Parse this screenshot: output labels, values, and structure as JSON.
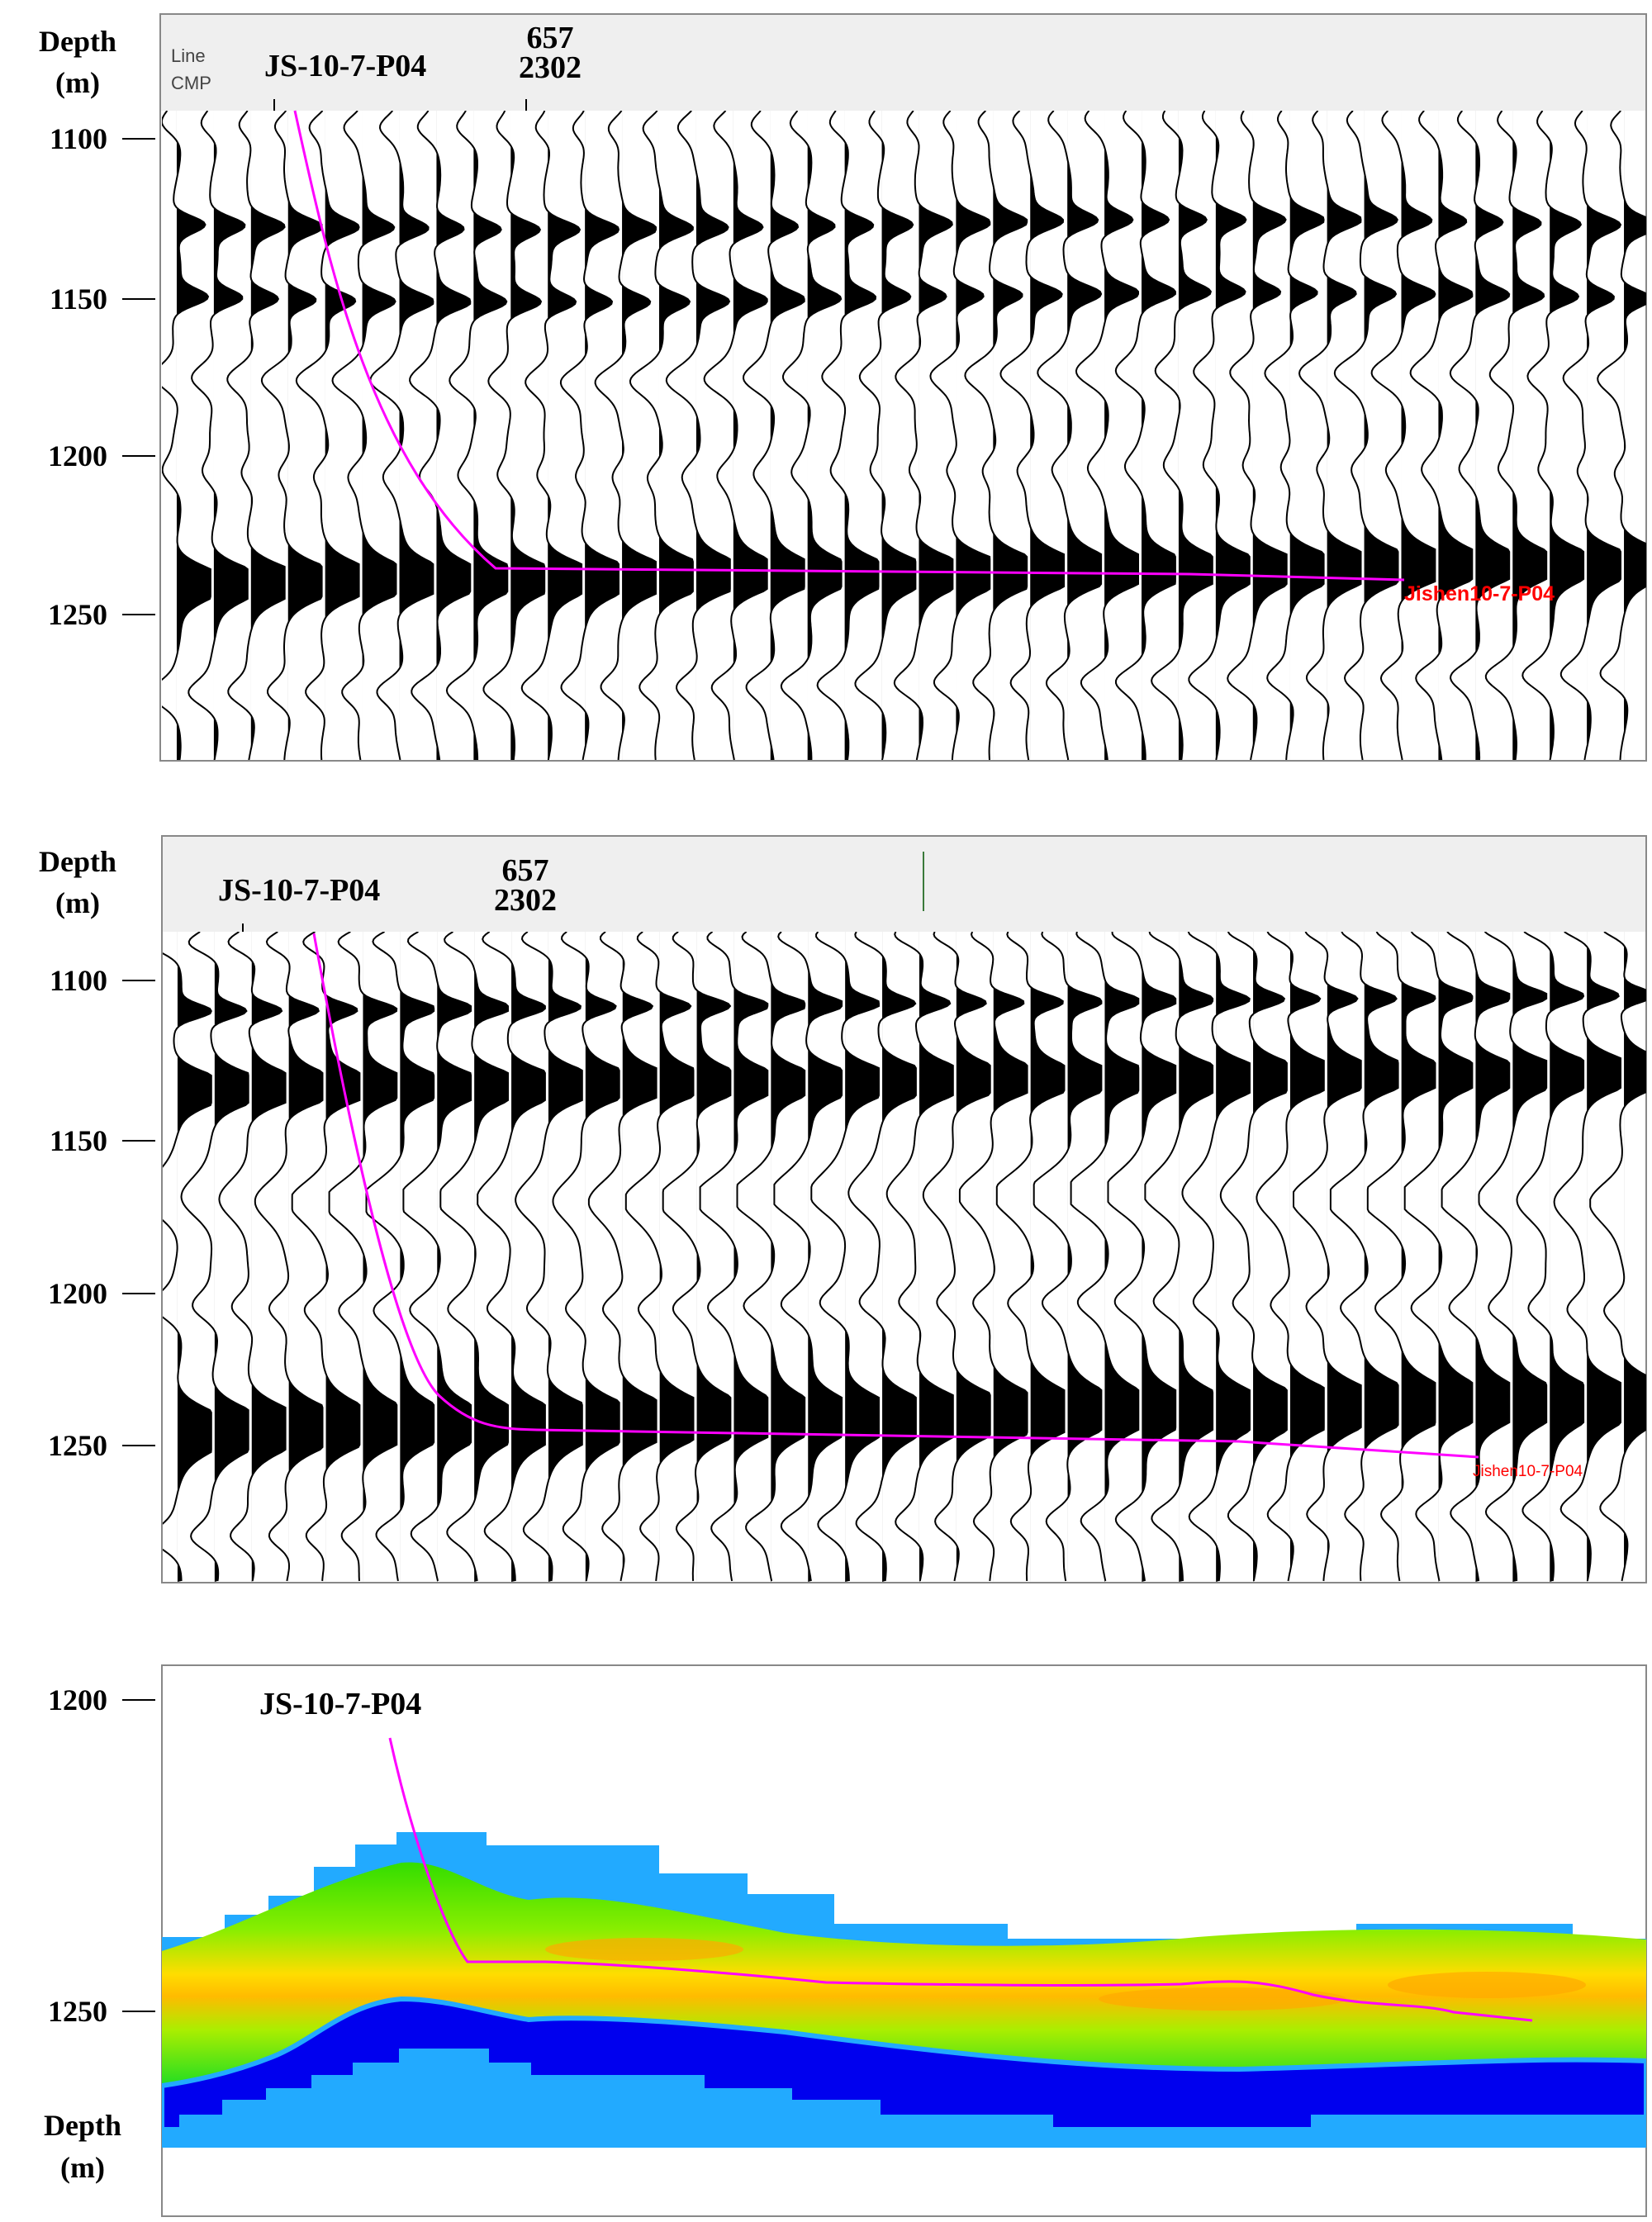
{
  "axis_title": {
    "line1": "Depth",
    "line2": "(m)"
  },
  "panels": [
    {
      "header": {
        "line_label": "Line",
        "cmp_label": "CMP",
        "well_name": "JS-10-7-P04",
        "line_value": "657",
        "cmp_value": "2302"
      },
      "depth_ticks": [
        "1100",
        "1150",
        "1200",
        "1250"
      ],
      "well_label": "Jishen10-7-P04"
    },
    {
      "header": {
        "well_name": "JS-10-7-P04",
        "line_value": "657",
        "cmp_value": "2302"
      },
      "depth_ticks": [
        "1100",
        "1150",
        "1200",
        "1250"
      ],
      "well_label": "Jishen10-7-P04"
    },
    {
      "header": {
        "well_name": "JS-10-7-P04"
      },
      "depth_ticks": [
        "1200",
        "1250"
      ]
    }
  ],
  "colors": {
    "well_path": "#ff00ff",
    "well_label": "#ff0000",
    "header_bg": "#efefef",
    "attribute_low": "#0000ff",
    "attribute_mid": "#33dd00",
    "attribute_high": "#ffcc00",
    "attribute_peak": "#ff9900"
  }
}
